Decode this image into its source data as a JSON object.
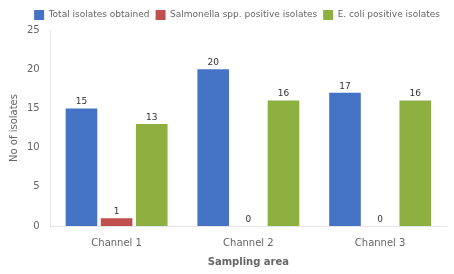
{
  "chart_data": {
    "type": "bar",
    "xlabel": "Sampling area",
    "ylabel": "No of isolates",
    "categories": [
      "Channel 1",
      "Channel 2",
      "Channel 3"
    ],
    "series": [
      {
        "name": "Total isolates obtained",
        "color": "#4472C4",
        "values": [
          15,
          20,
          17
        ]
      },
      {
        "name": "Salmonella spp. positive isolates",
        "color": "#C0504D",
        "values": [
          1,
          0,
          0
        ]
      },
      {
        "name": "E. coli positive isolates",
        "color": "#8DB040",
        "values": [
          13,
          16,
          16
        ]
      }
    ],
    "ylim": [
      0,
      25
    ],
    "yticks": [
      0,
      5,
      10,
      15,
      20,
      25
    ],
    "grid": false,
    "legend": "upper right",
    "data_labels": true
  }
}
